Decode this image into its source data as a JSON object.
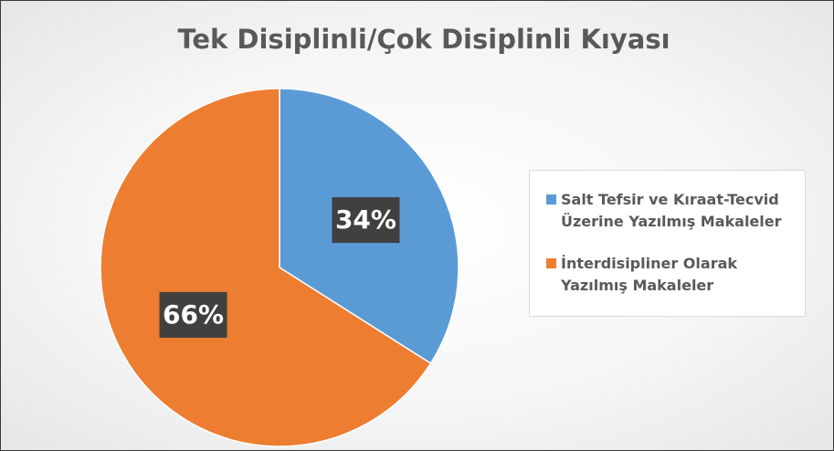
{
  "chart_data": {
    "type": "pie",
    "title": "Tek Disiplinli/Çok Disiplinli Kıyası",
    "categories": [
      "Salt Tefsir ve Kıraat-Tecvid Üzerine Yazılmış Makaleler",
      "İnterdisipliner Olarak Yazılmış Makaleler"
    ],
    "values": [
      34,
      66
    ],
    "value_labels": [
      "34%",
      "66%"
    ],
    "colors": [
      "#5b9bd5",
      "#ed7d31"
    ],
    "legend": "right"
  }
}
